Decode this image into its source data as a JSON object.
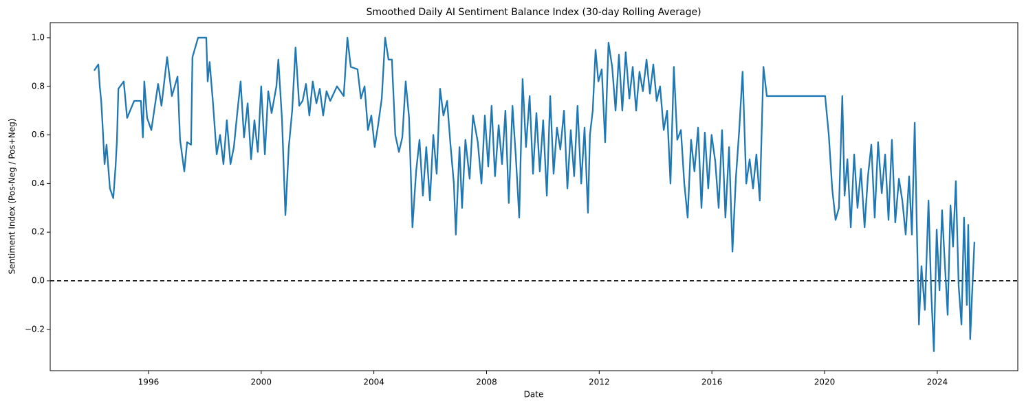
{
  "chart_data": {
    "type": "line",
    "title": "Smoothed Daily AI Sentiment Balance Index (30-day Rolling Average)",
    "x_label": "Date",
    "y_label": "Sentiment Index (Pos-Neg / Pos+Neg)",
    "xlim": [
      1992.51,
      2026.86
    ],
    "xticks": [
      1996,
      2000,
      2004,
      2008,
      2012,
      2016,
      2020,
      2024
    ],
    "ylim": [
      -0.37,
      1.062
    ],
    "yticks": [
      {
        "value": -0.2,
        "label": "−0.2"
      },
      {
        "value": 0,
        "label": "0.0"
      },
      0.2,
      0.4,
      0.6,
      0.8,
      {
        "value": 1,
        "label": "1.0"
      }
    ],
    "grid": false,
    "hlines": [
      {
        "y": 0,
        "color": "#000000",
        "style": "dashed"
      }
    ],
    "x": [
      1994.07,
      1994.22,
      1994.27,
      1994.32,
      1994.36,
      1994.44,
      1994.51,
      1994.63,
      1994.75,
      1994.83,
      1994.88,
      1994.93,
      1995.12,
      1995.24,
      1995.49,
      1995.73,
      1995.8,
      1995.85,
      1995.95,
      1996.1,
      1996.34,
      1996.46,
      1996.66,
      1996.83,
      1997.03,
      1997.12,
      1997.27,
      1997.37,
      1997.51,
      1997.56,
      1997.76,
      1998.05,
      1998.1,
      1998.17,
      1998.29,
      1998.42,
      1998.54,
      1998.66,
      1998.78,
      1998.91,
      1999.03,
      1999.15,
      1999.27,
      1999.39,
      1999.52,
      1999.64,
      1999.76,
      1999.88,
      2000.0,
      2000.13,
      2000.25,
      2000.37,
      2000.54,
      2000.61,
      2000.74,
      2000.86,
      2000.98,
      2001.1,
      2001.22,
      2001.35,
      2001.47,
      2001.59,
      2001.71,
      2001.83,
      2001.96,
      2002.08,
      2002.2,
      2002.32,
      2002.45,
      2002.69,
      2002.93,
      2003.06,
      2003.18,
      2003.42,
      2003.54,
      2003.67,
      2003.79,
      2003.91,
      2004.03,
      2004.15,
      2004.28,
      2004.4,
      2004.52,
      2004.64,
      2004.76,
      2004.89,
      2005.01,
      2005.13,
      2005.25,
      2005.37,
      2005.5,
      2005.62,
      2005.74,
      2005.86,
      2005.99,
      2006.11,
      2006.23,
      2006.35,
      2006.47,
      2006.6,
      2006.72,
      2006.84,
      2006.91,
      2007.04,
      2007.13,
      2007.25,
      2007.4,
      2007.52,
      2007.69,
      2007.82,
      2007.94,
      2008.06,
      2008.18,
      2008.3,
      2008.43,
      2008.55,
      2008.67,
      2008.79,
      2008.92,
      2009.04,
      2009.16,
      2009.28,
      2009.4,
      2009.53,
      2009.65,
      2009.77,
      2009.89,
      2010.01,
      2010.14,
      2010.26,
      2010.38,
      2010.5,
      2010.62,
      2010.75,
      2010.87,
      2010.99,
      2011.11,
      2011.23,
      2011.36,
      2011.48,
      2011.6,
      2011.67,
      2011.77,
      2011.87,
      2011.97,
      2012.09,
      2012.21,
      2012.33,
      2012.46,
      2012.58,
      2012.7,
      2012.82,
      2012.94,
      2013.07,
      2013.19,
      2013.31,
      2013.43,
      2013.55,
      2013.68,
      2013.8,
      2013.92,
      2014.04,
      2014.16,
      2014.29,
      2014.41,
      2014.53,
      2014.65,
      2014.77,
      2014.9,
      2015.02,
      2015.14,
      2015.26,
      2015.38,
      2015.51,
      2015.63,
      2015.75,
      2015.87,
      2015.99,
      2016.12,
      2016.24,
      2016.36,
      2016.48,
      2016.61,
      2016.73,
      2016.85,
      2016.97,
      2017.09,
      2017.22,
      2017.34,
      2017.46,
      2017.58,
      2017.7,
      2017.83,
      2017.95,
      2020.02,
      2020.15,
      2020.27,
      2020.39,
      2020.51,
      2020.63,
      2020.71,
      2020.81,
      2020.93,
      2021.05,
      2021.17,
      2021.29,
      2021.42,
      2021.54,
      2021.66,
      2021.78,
      2021.9,
      2022.03,
      2022.15,
      2022.27,
      2022.39,
      2022.51,
      2022.64,
      2022.76,
      2022.88,
      2023.0,
      2023.1,
      2023.2,
      2023.27,
      2023.35,
      2023.44,
      2023.56,
      2023.69,
      2023.78,
      2023.88,
      2023.98,
      2024.08,
      2024.17,
      2024.27,
      2024.37,
      2024.47,
      2024.56,
      2024.66,
      2024.76,
      2024.86,
      2024.95,
      2025.05,
      2025.1,
      2025.17,
      2025.25,
      2025.32
    ],
    "series": [
      {
        "color": "#1f77b4",
        "values": [
          0.865,
          0.89,
          0.8,
          0.74,
          0.66,
          0.48,
          0.56,
          0.38,
          0.34,
          0.47,
          0.58,
          0.79,
          0.82,
          0.67,
          0.74,
          0.74,
          0.59,
          0.82,
          0.67,
          0.62,
          0.81,
          0.72,
          0.92,
          0.76,
          0.84,
          0.58,
          0.45,
          0.57,
          0.56,
          0.92,
          1.0,
          1.0,
          0.82,
          0.9,
          0.73,
          0.52,
          0.6,
          0.48,
          0.66,
          0.48,
          0.55,
          0.69,
          0.82,
          0.59,
          0.73,
          0.5,
          0.66,
          0.53,
          0.8,
          0.52,
          0.78,
          0.69,
          0.8,
          0.91,
          0.66,
          0.27,
          0.55,
          0.7,
          0.96,
          0.72,
          0.74,
          0.81,
          0.68,
          0.82,
          0.73,
          0.79,
          0.68,
          0.78,
          0.74,
          0.8,
          0.76,
          1.0,
          0.88,
          0.87,
          0.75,
          0.8,
          0.62,
          0.68,
          0.55,
          0.64,
          0.75,
          1.0,
          0.91,
          0.91,
          0.6,
          0.53,
          0.59,
          0.82,
          0.67,
          0.22,
          0.45,
          0.58,
          0.35,
          0.55,
          0.33,
          0.6,
          0.44,
          0.79,
          0.68,
          0.74,
          0.56,
          0.4,
          0.19,
          0.55,
          0.3,
          0.58,
          0.42,
          0.68,
          0.57,
          0.4,
          0.68,
          0.47,
          0.72,
          0.43,
          0.64,
          0.48,
          0.7,
          0.32,
          0.72,
          0.51,
          0.26,
          0.83,
          0.55,
          0.76,
          0.44,
          0.69,
          0.45,
          0.66,
          0.35,
          0.76,
          0.44,
          0.63,
          0.54,
          0.7,
          0.38,
          0.62,
          0.43,
          0.72,
          0.4,
          0.63,
          0.28,
          0.6,
          0.7,
          0.95,
          0.82,
          0.87,
          0.57,
          0.98,
          0.88,
          0.7,
          0.93,
          0.7,
          0.94,
          0.75,
          0.88,
          0.7,
          0.86,
          0.78,
          0.91,
          0.77,
          0.89,
          0.74,
          0.8,
          0.62,
          0.7,
          0.4,
          0.88,
          0.58,
          0.62,
          0.4,
          0.26,
          0.58,
          0.45,
          0.63,
          0.3,
          0.61,
          0.38,
          0.6,
          0.49,
          0.3,
          0.62,
          0.26,
          0.55,
          0.12,
          0.42,
          0.62,
          0.86,
          0.4,
          0.5,
          0.38,
          0.52,
          0.33,
          0.88,
          0.76,
          0.76,
          0.6,
          0.38,
          0.25,
          0.3,
          0.76,
          0.35,
          0.5,
          0.22,
          0.52,
          0.3,
          0.46,
          0.22,
          0.43,
          0.56,
          0.26,
          0.57,
          0.36,
          0.52,
          0.25,
          0.58,
          0.24,
          0.42,
          0.33,
          0.19,
          0.43,
          0.19,
          0.65,
          0.25,
          -0.18,
          0.06,
          -0.12,
          0.33,
          -0.03,
          -0.29,
          0.21,
          -0.04,
          0.29,
          0.07,
          -0.14,
          0.31,
          0.14,
          0.41,
          -0.02,
          -0.18,
          0.26,
          -0.1,
          0.23,
          -0.24,
          -0.02,
          0.16
        ]
      }
    ]
  }
}
